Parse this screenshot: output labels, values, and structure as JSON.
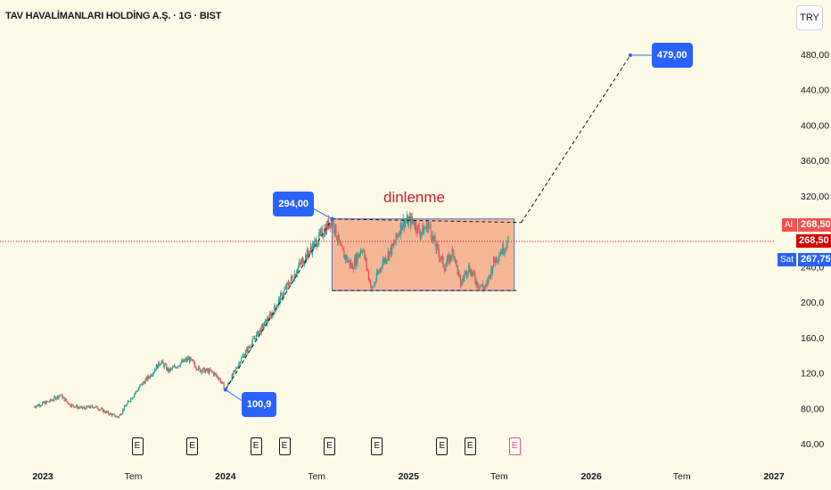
{
  "header": {
    "title": "TAV HAVALİMANLARI HOLDİNG A.Ş. · 1G · BIST"
  },
  "currency_button": {
    "label": "TRY"
  },
  "price_scale": {
    "ticks": [
      {
        "value": 480,
        "label": "480,00"
      },
      {
        "value": 440,
        "label": "440,00"
      },
      {
        "value": 400,
        "label": "400,00"
      },
      {
        "value": 360,
        "label": "360,00"
      },
      {
        "value": 320,
        "label": "320,00"
      },
      {
        "value": 240,
        "label": "240,0"
      },
      {
        "value": 200,
        "label": "200,0"
      },
      {
        "value": 160,
        "label": "160,0"
      },
      {
        "value": 120,
        "label": "120,0"
      },
      {
        "value": 80,
        "label": "80,00"
      },
      {
        "value": 40,
        "label": "40,00"
      }
    ],
    "ask": {
      "label": "Al",
      "value": "268,50",
      "color": "#ef5350"
    },
    "last": {
      "value": "268,50",
      "color": "#d50000"
    },
    "bid": {
      "label": "Sat",
      "value": "267,75",
      "color": "#2962ff"
    }
  },
  "time_scale": {
    "labels": [
      {
        "date": "2023-01-01",
        "label": "2023"
      },
      {
        "date": "2023-07-01",
        "label": "Tem"
      },
      {
        "date": "2024-01-01",
        "label": "2024"
      },
      {
        "date": "2024-07-01",
        "label": "Tem"
      },
      {
        "date": "2025-01-01",
        "label": "2025"
      },
      {
        "date": "2025-07-01",
        "label": "Tem"
      },
      {
        "date": "2026-01-01",
        "label": "2026"
      },
      {
        "date": "2026-07-01",
        "label": "Tem"
      },
      {
        "date": "2027-01-01",
        "label": "2027"
      }
    ]
  },
  "events": {
    "earnings_label": "E",
    "dates": [
      "2023-07-08",
      "2023-10-26",
      "2024-03-01",
      "2024-04-27",
      "2024-07-26",
      "2024-10-29",
      "2025-03-08",
      "2025-05-03"
    ],
    "upcoming": "2025-07-31"
  },
  "drawings": {
    "annotation_text": "dinlenme",
    "low_callout": {
      "label": "100,9",
      "date": "2024-01-01",
      "price": 100.9
    },
    "high_callout": {
      "label": "294,00",
      "date": "2024-08-01",
      "price": 294.0
    },
    "target_callout": {
      "label": "479,00",
      "date": "2026-03-20",
      "price": 479.0
    },
    "range_box": {
      "start": "2024-08-01",
      "end": "2025-07-31",
      "top": 294,
      "bottom": 213,
      "fill": "#f3a07b"
    },
    "accent_colors": {
      "up": "#26a69a",
      "down": "#ef5350",
      "line": "#131722",
      "callout": "#2962ff"
    }
  },
  "chart_data": {
    "type": "line",
    "series": [
      {
        "values": [
          {
            "x": "2022-12-15",
            "y": 82
          },
          {
            "x": "2023-01-15",
            "y": 88
          },
          {
            "x": "2023-02-05",
            "y": 95
          },
          {
            "x": "2023-02-25",
            "y": 84
          },
          {
            "x": "2023-03-20",
            "y": 80
          },
          {
            "x": "2023-04-15",
            "y": 82
          },
          {
            "x": "2023-05-10",
            "y": 75
          },
          {
            "x": "2023-06-01",
            "y": 70
          },
          {
            "x": "2023-06-25",
            "y": 90
          },
          {
            "x": "2023-07-15",
            "y": 105
          },
          {
            "x": "2023-08-05",
            "y": 118
          },
          {
            "x": "2023-08-25",
            "y": 133
          },
          {
            "x": "2023-09-10",
            "y": 122
          },
          {
            "x": "2023-10-01",
            "y": 130
          },
          {
            "x": "2023-10-20",
            "y": 136
          },
          {
            "x": "2023-11-10",
            "y": 124
          },
          {
            "x": "2023-12-05",
            "y": 121
          },
          {
            "x": "2023-12-20",
            "y": 114
          },
          {
            "x": "2024-01-01",
            "y": 101
          },
          {
            "x": "2024-02-01",
            "y": 135
          },
          {
            "x": "2024-03-01",
            "y": 160
          },
          {
            "x": "2024-04-01",
            "y": 185
          },
          {
            "x": "2024-05-01",
            "y": 215
          },
          {
            "x": "2024-06-01",
            "y": 245
          },
          {
            "x": "2024-07-01",
            "y": 268
          },
          {
            "x": "2024-08-01",
            "y": 294
          },
          {
            "x": "2024-08-20",
            "y": 258
          },
          {
            "x": "2024-09-10",
            "y": 240
          },
          {
            "x": "2024-10-01",
            "y": 262
          },
          {
            "x": "2024-10-20",
            "y": 213
          },
          {
            "x": "2024-11-10",
            "y": 245
          },
          {
            "x": "2024-12-01",
            "y": 262
          },
          {
            "x": "2024-12-20",
            "y": 290
          },
          {
            "x": "2025-01-10",
            "y": 292
          },
          {
            "x": "2025-01-25",
            "y": 278
          },
          {
            "x": "2025-02-10",
            "y": 288
          },
          {
            "x": "2025-02-25",
            "y": 262
          },
          {
            "x": "2025-03-15",
            "y": 240
          },
          {
            "x": "2025-04-01",
            "y": 258
          },
          {
            "x": "2025-04-15",
            "y": 220
          },
          {
            "x": "2025-05-01",
            "y": 240
          },
          {
            "x": "2025-05-20",
            "y": 220
          },
          {
            "x": "2025-06-05",
            "y": 216
          },
          {
            "x": "2025-06-20",
            "y": 245
          },
          {
            "x": "2025-07-05",
            "y": 258
          },
          {
            "x": "2025-07-20",
            "y": 268.5
          }
        ]
      }
    ],
    "x_range": [
      "2022-12-15",
      "2027-03-01"
    ],
    "ylim": [
      20,
      500
    ],
    "current_price": 268.5,
    "grid": false
  }
}
